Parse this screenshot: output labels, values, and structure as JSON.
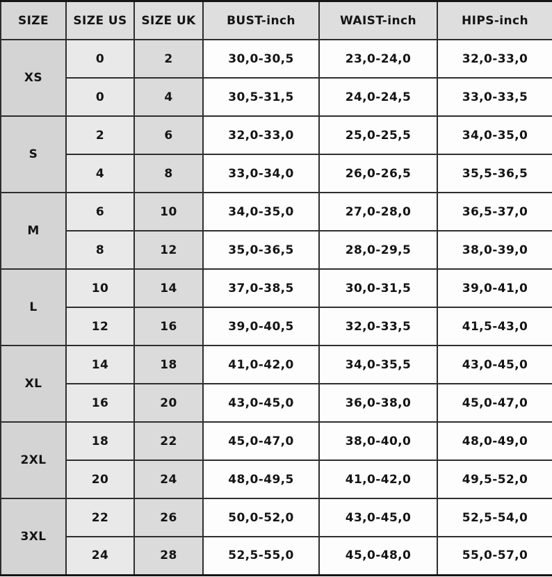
{
  "colors": {
    "header_bg": "#dedede",
    "size_column_bg": "#d4d4d4",
    "size_us_column_bg": "#e9e9e9",
    "size_uk_column_bg": "#dbdbdb",
    "measure_column_bg": "#fdfdfd",
    "border": "#2e2e2e",
    "text": "#141414"
  },
  "chart_data": {
    "type": "table",
    "columns": [
      "SIZE",
      "SIZE US",
      "SIZE UK",
      "BUST-inch",
      "WAIST-inch",
      "HIPS-inch"
    ],
    "groups": [
      {
        "size": "XS",
        "rows": [
          [
            "0",
            "2",
            "30,0-30,5",
            "23,0-24,0",
            "32,0-33,0"
          ],
          [
            "0",
            "4",
            "30,5-31,5",
            "24,0-24,5",
            "33,0-33,5"
          ]
        ]
      },
      {
        "size": "S",
        "rows": [
          [
            "2",
            "6",
            "32,0-33,0",
            "25,0-25,5",
            "34,0-35,0"
          ],
          [
            "4",
            "8",
            "33,0-34,0",
            "26,0-26,5",
            "35,5-36,5"
          ]
        ]
      },
      {
        "size": "M",
        "rows": [
          [
            "6",
            "10",
            "34,0-35,0",
            "27,0-28,0",
            "36,5-37,0"
          ],
          [
            "8",
            "12",
            "35,0-36,5",
            "28,0-29,5",
            "38,0-39,0"
          ]
        ]
      },
      {
        "size": "L",
        "rows": [
          [
            "10",
            "14",
            "37,0-38,5",
            "30,0-31,5",
            "39,0-41,0"
          ],
          [
            "12",
            "16",
            "39,0-40,5",
            "32,0-33,5",
            "41,5-43,0"
          ]
        ]
      },
      {
        "size": "XL",
        "rows": [
          [
            "14",
            "18",
            "41,0-42,0",
            "34,0-35,5",
            "43,0-45,0"
          ],
          [
            "16",
            "20",
            "43,0-45,0",
            "36,0-38,0",
            "45,0-47,0"
          ]
        ]
      },
      {
        "size": "2XL",
        "rows": [
          [
            "18",
            "22",
            "45,0-47,0",
            "38,0-40,0",
            "48,0-49,0"
          ],
          [
            "20",
            "24",
            "48,0-49,5",
            "41,0-42,0",
            "49,5-52,0"
          ]
        ]
      },
      {
        "size": "3XL",
        "rows": [
          [
            "22",
            "26",
            "50,0-52,0",
            "43,0-45,0",
            "52,5-54,0"
          ],
          [
            "24",
            "28",
            "52,5-55,0",
            "45,0-48,0",
            "55,0-57,0"
          ]
        ]
      }
    ]
  }
}
